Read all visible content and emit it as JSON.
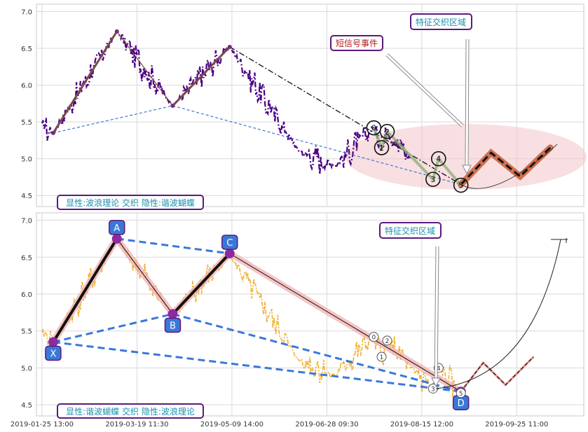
{
  "chart_data": [
    {
      "type": "line",
      "panel": "top",
      "ylim": [
        4.35,
        7.1
      ],
      "yticks": [
        "7.0",
        "6.5",
        "6.0",
        "5.5",
        "5.0",
        "4.5"
      ],
      "ytick_values": [
        7.0,
        6.5,
        6.0,
        5.5,
        5.0,
        4.5
      ],
      "grid": true,
      "price_color": "#4b0082",
      "wave_points": [
        {
          "label": "",
          "x": 10,
          "y": 5.35
        },
        {
          "label": "",
          "x": 67,
          "y": 6.73
        },
        {
          "label": "",
          "x": 117,
          "y": 5.72
        },
        {
          "label": "",
          "x": 168,
          "y": 6.52
        },
        {
          "label": "",
          "x": 375,
          "y": 4.65
        }
      ],
      "short_signals": [
        {
          "label": "0",
          "x": 297,
          "y": 5.42
        },
        {
          "label": "1",
          "x": 304,
          "y": 5.15
        },
        {
          "label": "2",
          "x": 309,
          "y": 5.37
        },
        {
          "label": "3",
          "x": 350,
          "y": 4.72
        },
        {
          "label": "4",
          "x": 355,
          "y": 5.0
        },
        {
          "label": "5",
          "x": 375,
          "y": 4.64
        }
      ],
      "projection": [
        {
          "x": 375,
          "y": 4.65
        },
        {
          "x": 402,
          "y": 5.08
        },
        {
          "x": 428,
          "y": 4.76
        },
        {
          "x": 455,
          "y": 5.15
        }
      ],
      "annotations": {
        "feature_zone": "特征交织区域",
        "short_signal": "短信号事件",
        "legend": "显性:波浪理论 交织 隐性:谐波蝴蝶"
      }
    },
    {
      "type": "line",
      "panel": "bottom",
      "ylim": [
        4.35,
        7.1
      ],
      "yticks": [
        "7.0",
        "6.5",
        "6.0",
        "5.5",
        "5.0",
        "4.5"
      ],
      "ytick_values": [
        7.0,
        6.5,
        6.0,
        5.5,
        5.0,
        4.5
      ],
      "grid": true,
      "price_color": "#f0b030",
      "harmonic_points": [
        {
          "label": "X",
          "x": 10,
          "y": 5.35
        },
        {
          "label": "A",
          "x": 67,
          "y": 6.75
        },
        {
          "label": "B",
          "x": 117,
          "y": 5.73
        },
        {
          "label": "C",
          "x": 168,
          "y": 6.55
        },
        {
          "label": "D",
          "x": 375,
          "y": 4.68
        }
      ],
      "wave_labels": [
        {
          "label": "0",
          "x": 297,
          "y": 5.42
        },
        {
          "label": "1",
          "x": 304,
          "y": 5.15
        },
        {
          "label": "2",
          "x": 309,
          "y": 5.37
        },
        {
          "label": "3",
          "x": 350,
          "y": 4.72
        },
        {
          "label": "4",
          "x": 355,
          "y": 5.0
        },
        {
          "label": "5",
          "x": 375,
          "y": 4.66
        }
      ],
      "projection": [
        {
          "x": 375,
          "y": 4.68
        },
        {
          "x": 395,
          "y": 5.07
        },
        {
          "x": 415,
          "y": 4.77
        },
        {
          "x": 440,
          "y": 5.15
        }
      ],
      "annotations": {
        "feature_zone": "特征交织区域",
        "legend": "显性:谐波蝴蝶 交织 隐性:波浪理论"
      }
    }
  ],
  "x_axis": {
    "range": [
      -5,
      485
    ],
    "tick_labels": [
      "2019-01-25 13:00",
      "2019-03-19 11:30",
      "2019-05-09 14:00",
      "2019-06-28 09:30",
      "2019-08-15 12:00",
      "2019-09-25 11:00"
    ],
    "tick_values": [
      0,
      85,
      170,
      255,
      340,
      425
    ]
  }
}
